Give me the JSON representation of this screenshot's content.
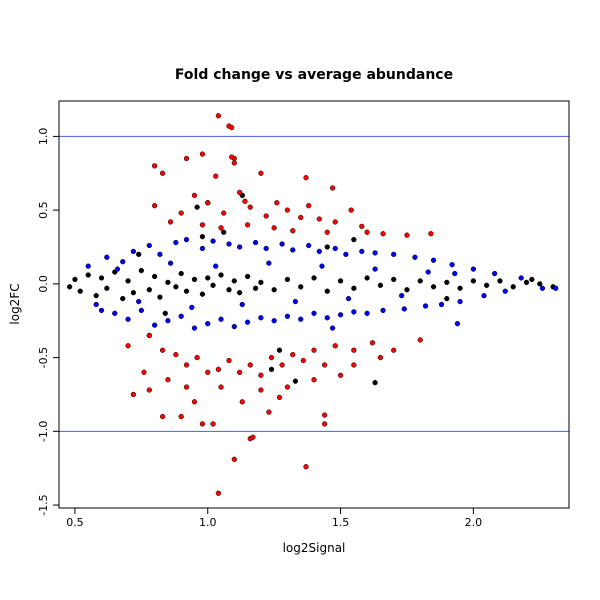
{
  "chart_data": {
    "type": "scatter",
    "title": "Fold change vs average abundance",
    "xlabel": "log2Signal",
    "ylabel": "log2FC",
    "xlim": [
      0.44,
      2.36
    ],
    "ylim": [
      -1.52,
      1.24
    ],
    "xticks": [
      0.5,
      1.0,
      1.5,
      2.0
    ],
    "xtick_labels": [
      "0.5",
      "1.0",
      "1.5",
      "2.0"
    ],
    "yticks": [
      -1.5,
      -1.0,
      -0.5,
      0.0,
      0.5,
      1.0
    ],
    "ytick_labels": [
      "-1.5",
      "-1.0",
      "-0.5",
      "0.0",
      "0.5",
      "1.0"
    ],
    "grid": false,
    "legend": "none",
    "hlines": [
      1.0,
      -1.0
    ],
    "hline_color": "#4a5cf0",
    "series": [
      {
        "color": "#000000",
        "description_points": "dense band around 0",
        "points": [
          [
            0.48,
            -0.02
          ],
          [
            0.5,
            0.03
          ],
          [
            0.52,
            -0.05
          ],
          [
            0.55,
            0.06
          ],
          [
            0.58,
            -0.08
          ],
          [
            0.6,
            0.04
          ],
          [
            0.62,
            -0.03
          ],
          [
            0.65,
            0.08
          ],
          [
            0.68,
            -0.1
          ],
          [
            0.7,
            0.02
          ],
          [
            0.72,
            -0.06
          ],
          [
            0.75,
            0.09
          ],
          [
            0.78,
            -0.04
          ],
          [
            0.8,
            0.05
          ],
          [
            0.82,
            -0.09
          ],
          [
            0.85,
            0.01
          ],
          [
            0.88,
            -0.02
          ],
          [
            0.9,
            0.07
          ],
          [
            0.92,
            -0.05
          ],
          [
            0.95,
            0.03
          ],
          [
            0.98,
            -0.07
          ],
          [
            1.0,
            0.04
          ],
          [
            1.02,
            -0.01
          ],
          [
            1.05,
            0.06
          ],
          [
            1.08,
            -0.04
          ],
          [
            1.1,
            0.02
          ],
          [
            1.12,
            -0.06
          ],
          [
            1.15,
            0.05
          ],
          [
            1.18,
            -0.03
          ],
          [
            1.2,
            0.01
          ],
          [
            1.25,
            -0.04
          ],
          [
            1.3,
            0.03
          ],
          [
            1.35,
            -0.02
          ],
          [
            1.4,
            0.04
          ],
          [
            1.45,
            -0.05
          ],
          [
            1.5,
            0.02
          ],
          [
            1.55,
            -0.03
          ],
          [
            1.6,
            0.04
          ],
          [
            1.65,
            -0.01
          ],
          [
            1.7,
            0.03
          ],
          [
            1.75,
            -0.04
          ],
          [
            1.8,
            0.02
          ],
          [
            1.85,
            -0.02
          ],
          [
            1.9,
            0.01
          ],
          [
            1.95,
            -0.03
          ],
          [
            2.0,
            0.02
          ],
          [
            2.05,
            -0.01
          ],
          [
            2.1,
            0.02
          ],
          [
            2.15,
            -0.02
          ],
          [
            2.2,
            0.01
          ],
          [
            2.25,
            0.0
          ],
          [
            2.3,
            -0.02
          ],
          [
            1.13,
            0.6
          ],
          [
            1.0,
            0.55
          ],
          [
            1.24,
            -0.58
          ],
          [
            1.63,
            -0.67
          ],
          [
            0.96,
            0.52
          ],
          [
            1.33,
            -0.66
          ],
          [
            1.06,
            0.35
          ],
          [
            0.74,
            0.2
          ],
          [
            0.78,
            -0.35
          ],
          [
            1.9,
            -0.1
          ],
          [
            2.22,
            0.03
          ],
          [
            1.45,
            0.25
          ],
          [
            0.84,
            -0.2
          ],
          [
            1.55,
            0.3
          ],
          [
            1.27,
            -0.45
          ],
          [
            0.98,
            0.32
          ]
        ]
      },
      {
        "color": "#0000ff",
        "points": [
          [
            0.55,
            0.12
          ],
          [
            0.58,
            -0.14
          ],
          [
            0.62,
            0.18
          ],
          [
            0.65,
            -0.2
          ],
          [
            0.68,
            0.15
          ],
          [
            0.7,
            -0.24
          ],
          [
            0.72,
            0.22
          ],
          [
            0.75,
            -0.18
          ],
          [
            0.78,
            0.26
          ],
          [
            0.8,
            -0.28
          ],
          [
            0.82,
            0.2
          ],
          [
            0.85,
            -0.25
          ],
          [
            0.88,
            0.28
          ],
          [
            0.9,
            -0.22
          ],
          [
            0.92,
            0.3
          ],
          [
            0.95,
            -0.3
          ],
          [
            0.98,
            0.24
          ],
          [
            1.0,
            -0.27
          ],
          [
            1.02,
            0.29
          ],
          [
            1.05,
            -0.24
          ],
          [
            1.08,
            0.27
          ],
          [
            1.1,
            -0.29
          ],
          [
            1.12,
            0.25
          ],
          [
            1.15,
            -0.26
          ],
          [
            1.18,
            0.28
          ],
          [
            1.2,
            -0.23
          ],
          [
            1.22,
            0.24
          ],
          [
            1.25,
            -0.25
          ],
          [
            1.28,
            0.27
          ],
          [
            1.3,
            -0.22
          ],
          [
            1.32,
            0.23
          ],
          [
            1.35,
            -0.24
          ],
          [
            1.38,
            0.26
          ],
          [
            1.4,
            -0.2
          ],
          [
            1.42,
            0.22
          ],
          [
            1.45,
            -0.23
          ],
          [
            1.48,
            0.24
          ],
          [
            1.5,
            -0.21
          ],
          [
            1.52,
            0.2
          ],
          [
            1.55,
            -0.19
          ],
          [
            1.58,
            0.22
          ],
          [
            1.6,
            -0.2
          ],
          [
            1.63,
            0.21
          ],
          [
            1.66,
            -0.18
          ],
          [
            1.7,
            0.2
          ],
          [
            1.74,
            -0.17
          ],
          [
            1.78,
            0.18
          ],
          [
            1.82,
            -0.15
          ],
          [
            1.85,
            0.16
          ],
          [
            1.88,
            -0.14
          ],
          [
            1.92,
            0.13
          ],
          [
            1.95,
            -0.12
          ],
          [
            2.0,
            0.1
          ],
          [
            2.04,
            -0.08
          ],
          [
            2.08,
            0.07
          ],
          [
            2.12,
            -0.05
          ],
          [
            2.18,
            0.04
          ],
          [
            2.26,
            -0.03
          ],
          [
            2.31,
            -0.03
          ],
          [
            0.6,
            -0.18
          ],
          [
            0.66,
            0.1
          ],
          [
            0.74,
            -0.12
          ],
          [
            0.86,
            0.14
          ],
          [
            0.94,
            -0.16
          ],
          [
            1.03,
            0.12
          ],
          [
            1.13,
            -0.14
          ],
          [
            1.23,
            0.14
          ],
          [
            1.33,
            -0.12
          ],
          [
            1.43,
            0.12
          ],
          [
            1.53,
            -0.1
          ],
          [
            1.63,
            0.1
          ],
          [
            1.73,
            -0.08
          ],
          [
            1.83,
            0.08
          ],
          [
            1.93,
            0.07
          ],
          [
            1.47,
            -0.3
          ],
          [
            1.94,
            -0.27
          ]
        ]
      },
      {
        "color": "#ff0000",
        "points": [
          [
            1.04,
            1.14
          ],
          [
            1.08,
            1.07
          ],
          [
            1.09,
            1.06
          ],
          [
            1.1,
            0.85
          ],
          [
            1.09,
            0.86
          ],
          [
            0.98,
            0.88
          ],
          [
            0.8,
            0.8
          ],
          [
            0.83,
            0.75
          ],
          [
            0.92,
            0.85
          ],
          [
            1.1,
            0.82
          ],
          [
            1.03,
            0.73
          ],
          [
            1.37,
            0.72
          ],
          [
            1.2,
            0.75
          ],
          [
            1.47,
            0.65
          ],
          [
            1.54,
            0.5
          ],
          [
            0.9,
            0.48
          ],
          [
            0.95,
            0.6
          ],
          [
            1.0,
            0.55
          ],
          [
            1.06,
            0.48
          ],
          [
            1.12,
            0.62
          ],
          [
            1.16,
            0.52
          ],
          [
            1.22,
            0.46
          ],
          [
            1.26,
            0.55
          ],
          [
            1.3,
            0.5
          ],
          [
            1.35,
            0.45
          ],
          [
            1.38,
            0.53
          ],
          [
            1.42,
            0.44
          ],
          [
            1.48,
            0.42
          ],
          [
            1.58,
            0.39
          ],
          [
            1.66,
            0.34
          ],
          [
            1.75,
            0.33
          ],
          [
            1.84,
            0.34
          ],
          [
            0.86,
            0.42
          ],
          [
            0.98,
            0.4
          ],
          [
            1.05,
            0.38
          ],
          [
            1.15,
            0.4
          ],
          [
            1.25,
            0.38
          ],
          [
            1.32,
            0.36
          ],
          [
            1.45,
            0.35
          ],
          [
            1.6,
            0.35
          ],
          [
            0.8,
            0.53
          ],
          [
            1.14,
            0.56
          ],
          [
            0.78,
            -0.35
          ],
          [
            0.83,
            -0.45
          ],
          [
            0.88,
            -0.48
          ],
          [
            0.92,
            -0.55
          ],
          [
            0.96,
            -0.5
          ],
          [
            1.0,
            -0.6
          ],
          [
            1.04,
            -0.58
          ],
          [
            1.08,
            -0.52
          ],
          [
            1.12,
            -0.6
          ],
          [
            1.16,
            -0.55
          ],
          [
            1.2,
            -0.62
          ],
          [
            1.24,
            -0.5
          ],
          [
            1.28,
            -0.55
          ],
          [
            1.32,
            -0.48
          ],
          [
            1.36,
            -0.52
          ],
          [
            1.4,
            -0.45
          ],
          [
            1.44,
            -0.55
          ],
          [
            1.48,
            -0.42
          ],
          [
            1.55,
            -0.45
          ],
          [
            1.62,
            -0.4
          ],
          [
            1.7,
            -0.45
          ],
          [
            1.8,
            -0.38
          ],
          [
            0.7,
            -0.42
          ],
          [
            0.72,
            -0.75
          ],
          [
            0.76,
            -0.6
          ],
          [
            0.78,
            -0.72
          ],
          [
            0.83,
            -0.9
          ],
          [
            0.9,
            -0.9
          ],
          [
            0.95,
            -0.8
          ],
          [
            0.98,
            -0.95
          ],
          [
            1.02,
            -0.95
          ],
          [
            1.05,
            -0.7
          ],
          [
            1.13,
            -0.8
          ],
          [
            1.16,
            -1.05
          ],
          [
            1.17,
            -1.04
          ],
          [
            1.23,
            -0.87
          ],
          [
            1.1,
            -1.19
          ],
          [
            1.04,
            -1.42
          ],
          [
            1.37,
            -1.24
          ],
          [
            1.44,
            -0.89
          ],
          [
            1.44,
            -0.95
          ],
          [
            1.3,
            -0.7
          ],
          [
            1.4,
            -0.65
          ],
          [
            1.5,
            -0.62
          ],
          [
            1.55,
            -0.55
          ],
          [
            0.85,
            -0.65
          ],
          [
            0.92,
            -0.7
          ],
          [
            1.2,
            -0.72
          ],
          [
            1.27,
            -0.77
          ],
          [
            1.65,
            -0.5
          ]
        ]
      }
    ]
  }
}
